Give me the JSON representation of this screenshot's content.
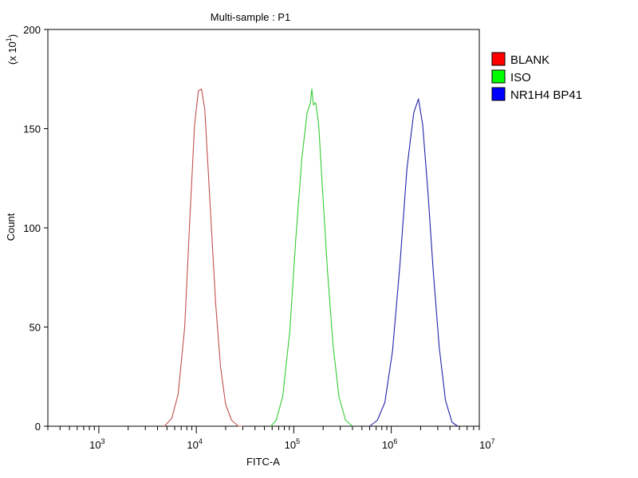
{
  "chart_data": {
    "type": "line",
    "title": "Multi-sample : P1",
    "xlabel": "FITC-A",
    "ylabel": "Count",
    "y_multiplier_label": "(x 10",
    "y_multiplier_exp": "1",
    "y_multiplier_close": ")",
    "x_scale": "log",
    "xlim": [
      300,
      8000000
    ],
    "ylim": [
      0,
      200
    ],
    "grid": false,
    "legend_position": "right",
    "x_ticks": [
      {
        "value": 1000,
        "base": "10",
        "exp": "3"
      },
      {
        "value": 10000,
        "base": "10",
        "exp": "4"
      },
      {
        "value": 100000,
        "base": "10",
        "exp": "5"
      },
      {
        "value": 1000000,
        "base": "10",
        "exp": "6"
      },
      {
        "value": 10000000,
        "base": "10",
        "exp": "7"
      }
    ],
    "y_ticks": [
      {
        "value": 0,
        "label": "0"
      },
      {
        "value": 50,
        "label": "50"
      },
      {
        "value": 100,
        "label": "100"
      },
      {
        "value": 150,
        "label": "150"
      },
      {
        "value": 200,
        "label": "200"
      }
    ],
    "series": [
      {
        "name": "BLANK",
        "color": "#c0504d",
        "legend_swatch": "#ff0000",
        "x": [
          4700,
          5600,
          6500,
          7600,
          8600,
          9600,
          10500,
          11300,
          12200,
          13100,
          14300,
          15800,
          17700,
          20000,
          23000,
          27000,
          30000
        ],
        "y": [
          0,
          4,
          16,
          50,
          105,
          152,
          169,
          170,
          160,
          133,
          100,
          62,
          30,
          11,
          3,
          0,
          0
        ]
      },
      {
        "name": "ISO",
        "color": "#33cc33",
        "legend_swatch": "#00ff00",
        "x": [
          58000,
          66000,
          77000,
          91000,
          105000,
          121000,
          137000,
          148000,
          153000,
          159000,
          168000,
          180000,
          198000,
          222000,
          252000,
          290000,
          340000,
          400000
        ],
        "y": [
          0,
          3,
          15,
          48,
          95,
          135,
          158,
          163,
          170,
          162,
          163,
          152,
          118,
          78,
          42,
          15,
          3,
          0
        ]
      },
      {
        "name": "NR1H4 BP41",
        "color": "#2222aa",
        "legend_swatch": "#0000ff",
        "x": [
          600000,
          720000,
          860000,
          1030000,
          1230000,
          1450000,
          1700000,
          1900000,
          2100000,
          2380000,
          2700000,
          3100000,
          3600000,
          4200000,
          4800000
        ],
        "y": [
          0,
          3,
          12,
          38,
          82,
          130,
          158,
          165,
          152,
          118,
          78,
          40,
          13,
          2,
          0
        ]
      }
    ]
  }
}
